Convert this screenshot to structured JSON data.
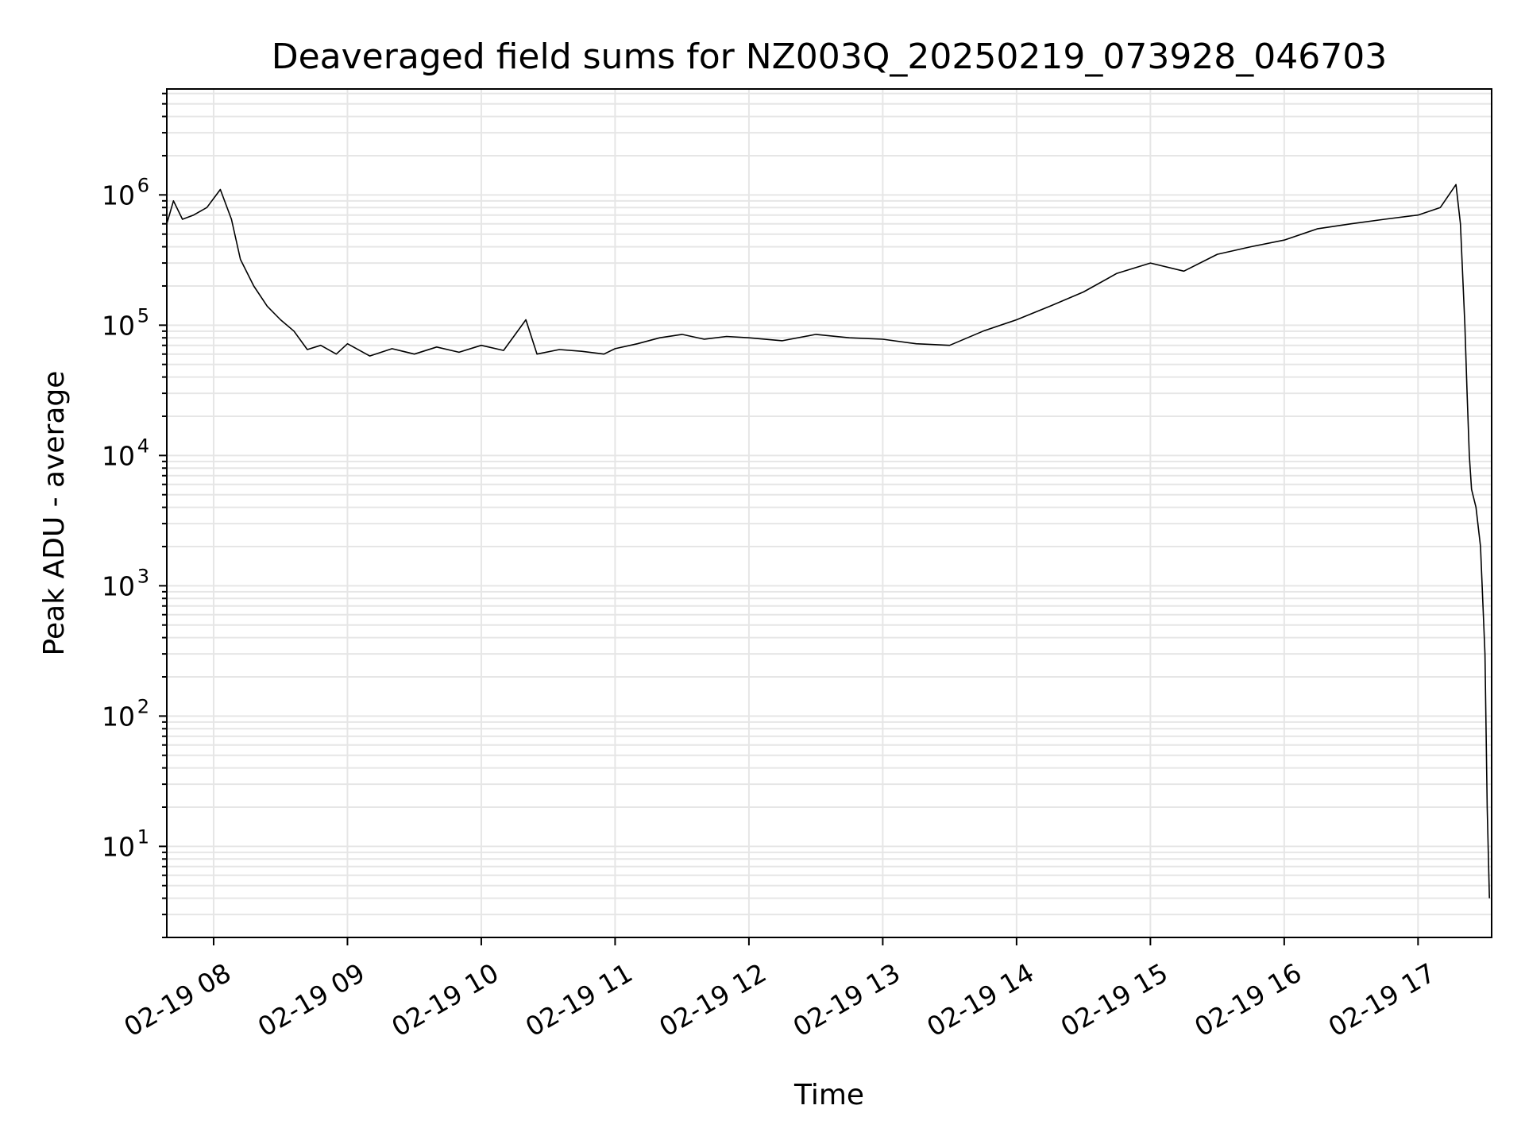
{
  "chart_data": {
    "type": "line",
    "title": "Deaveraged field sums for NZ003Q_20250219_073928_046703",
    "xlabel": "Time",
    "ylabel": "Peak ADU - average",
    "yscale": "log",
    "ylim": [
      2,
      6500000
    ],
    "xlim": [
      "02-19 07:39",
      "02-19 17:33"
    ],
    "grid": true,
    "line_color": "#000000",
    "grid_color": "#e6e6e6",
    "x_ticks": [
      {
        "t": "02-19 08:00",
        "label": "02-19 08"
      },
      {
        "t": "02-19 09:00",
        "label": "02-19 09"
      },
      {
        "t": "02-19 10:00",
        "label": "02-19 10"
      },
      {
        "t": "02-19 11:00",
        "label": "02-19 11"
      },
      {
        "t": "02-19 12:00",
        "label": "02-19 12"
      },
      {
        "t": "02-19 13:00",
        "label": "02-19 13"
      },
      {
        "t": "02-19 14:00",
        "label": "02-19 14"
      },
      {
        "t": "02-19 15:00",
        "label": "02-19 15"
      },
      {
        "t": "02-19 16:00",
        "label": "02-19 16"
      },
      {
        "t": "02-19 17:00",
        "label": "02-19 17"
      }
    ],
    "y_ticks": [
      {
        "value": 10,
        "exp": "1"
      },
      {
        "value": 100,
        "exp": "2"
      },
      {
        "value": 1000,
        "exp": "3"
      },
      {
        "value": 10000,
        "exp": "4"
      },
      {
        "value": 100000,
        "exp": "5"
      },
      {
        "value": 1000000,
        "exp": "6"
      }
    ],
    "series": [
      {
        "points": [
          [
            "02-19 07:39",
            600000
          ],
          [
            "02-19 07:42",
            900000
          ],
          [
            "02-19 07:46",
            650000
          ],
          [
            "02-19 07:51",
            700000
          ],
          [
            "02-19 07:57",
            800000
          ],
          [
            "02-19 08:03",
            1100000
          ],
          [
            "02-19 08:08",
            650000
          ],
          [
            "02-19 08:12",
            320000
          ],
          [
            "02-19 08:18",
            200000
          ],
          [
            "02-19 08:24",
            140000
          ],
          [
            "02-19 08:30",
            110000
          ],
          [
            "02-19 08:36",
            90000
          ],
          [
            "02-19 08:42",
            65000
          ],
          [
            "02-19 08:48",
            70000
          ],
          [
            "02-19 08:55",
            60000
          ],
          [
            "02-19 09:00",
            72000
          ],
          [
            "02-19 09:10",
            58000
          ],
          [
            "02-19 09:20",
            66000
          ],
          [
            "02-19 09:30",
            60000
          ],
          [
            "02-19 09:40",
            68000
          ],
          [
            "02-19 09:50",
            62000
          ],
          [
            "02-19 10:00",
            70000
          ],
          [
            "02-19 10:10",
            64000
          ],
          [
            "02-19 10:20",
            110000
          ],
          [
            "02-19 10:25",
            60000
          ],
          [
            "02-19 10:35",
            65000
          ],
          [
            "02-19 10:45",
            63000
          ],
          [
            "02-19 10:55",
            60000
          ],
          [
            "02-19 11:00",
            66000
          ],
          [
            "02-19 11:10",
            72000
          ],
          [
            "02-19 11:20",
            80000
          ],
          [
            "02-19 11:30",
            85000
          ],
          [
            "02-19 11:40",
            78000
          ],
          [
            "02-19 11:50",
            82000
          ],
          [
            "02-19 12:00",
            80000
          ],
          [
            "02-19 12:15",
            76000
          ],
          [
            "02-19 12:30",
            85000
          ],
          [
            "02-19 12:45",
            80000
          ],
          [
            "02-19 13:00",
            78000
          ],
          [
            "02-19 13:15",
            72000
          ],
          [
            "02-19 13:30",
            70000
          ],
          [
            "02-19 13:45",
            90000
          ],
          [
            "02-19 14:00",
            110000
          ],
          [
            "02-19 14:15",
            140000
          ],
          [
            "02-19 14:30",
            180000
          ],
          [
            "02-19 14:45",
            250000
          ],
          [
            "02-19 15:00",
            300000
          ],
          [
            "02-19 15:15",
            260000
          ],
          [
            "02-19 15:30",
            350000
          ],
          [
            "02-19 15:45",
            400000
          ],
          [
            "02-19 16:00",
            450000
          ],
          [
            "02-19 16:15",
            550000
          ],
          [
            "02-19 16:30",
            600000
          ],
          [
            "02-19 16:45",
            650000
          ],
          [
            "02-19 17:00",
            700000
          ],
          [
            "02-19 17:10",
            800000
          ],
          [
            "02-19 17:17",
            1200000
          ],
          [
            "02-19 17:19",
            600000
          ],
          [
            "02-19 17:21",
            100000
          ],
          [
            "02-19 17:22",
            30000
          ],
          [
            "02-19 17:23",
            10000
          ],
          [
            "02-19 17:24",
            5500
          ],
          [
            "02-19 17:26",
            4000
          ],
          [
            "02-19 17:28",
            2000
          ],
          [
            "02-19 17:30",
            300
          ],
          [
            "02-19 17:31",
            20
          ],
          [
            "02-19 17:32",
            4
          ]
        ]
      }
    ]
  }
}
